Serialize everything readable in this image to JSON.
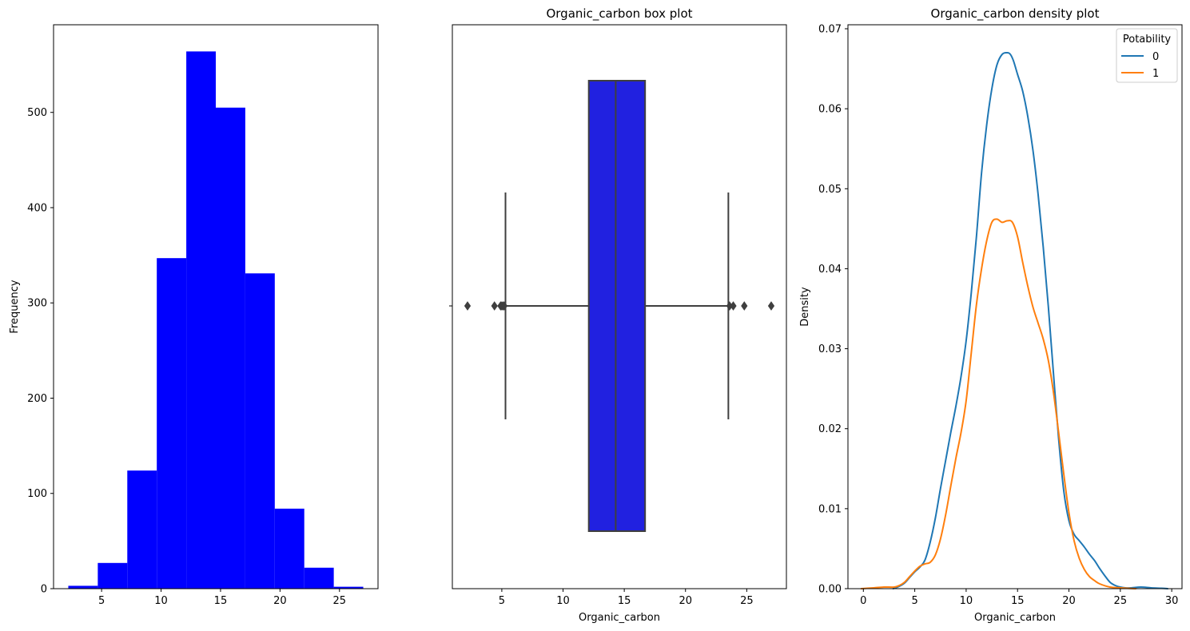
{
  "chart_data": [
    {
      "type": "bar",
      "subtype": "histogram",
      "title": "",
      "xlabel": "",
      "ylabel": "Frequency",
      "color": "#0000ff",
      "bin_edges": [
        2.2,
        4.68,
        7.16,
        9.64,
        12.12,
        14.6,
        17.08,
        19.56,
        22.04,
        24.52,
        27.0
      ],
      "values": [
        3,
        27,
        124,
        347,
        564,
        505,
        331,
        84,
        22,
        2
      ],
      "xlim": [
        0.96,
        28.24
      ],
      "ylim": [
        0,
        592
      ],
      "xticks": [
        5,
        10,
        15,
        20,
        25
      ],
      "xtick_labels": [
        "5",
        "10",
        "15",
        "20",
        "25"
      ],
      "yticks": [
        0,
        100,
        200,
        300,
        400,
        500
      ],
      "ytick_labels": [
        "0",
        "100",
        "200",
        "300",
        "400",
        "500"
      ]
    },
    {
      "type": "box",
      "title": "Organic_carbon box plot",
      "xlabel": "Organic_carbon",
      "ylabel": "",
      "color": "#2121e0",
      "edge_color": "#3f3f3f",
      "q1": 12.1,
      "median": 14.3,
      "q3": 16.7,
      "whisker_low": 5.3,
      "whisker_high": 23.5,
      "outliers": [
        2.2,
        4.4,
        4.9,
        5.0,
        5.1,
        5.2,
        23.6,
        23.9,
        24.8,
        27.0
      ],
      "xlim": [
        0.96,
        28.24
      ],
      "xticks": [
        5,
        10,
        15,
        20,
        25
      ],
      "xtick_labels": [
        "5",
        "10",
        "15",
        "20",
        "25"
      ]
    },
    {
      "type": "line",
      "subtype": "kde",
      "title": "Organic_carbon density plot",
      "xlabel": "Organic_carbon",
      "ylabel": "Density",
      "xlim": [
        -1.5,
        31.0
      ],
      "ylim": [
        0,
        0.0705
      ],
      "xticks": [
        0,
        5,
        10,
        15,
        20,
        25,
        30
      ],
      "xtick_labels": [
        "0",
        "5",
        "10",
        "15",
        "20",
        "25",
        "30"
      ],
      "yticks": [
        0,
        0.01,
        0.02,
        0.03,
        0.04,
        0.05,
        0.06,
        0.07
      ],
      "ytick_labels": [
        "0.00",
        "0.01",
        "0.02",
        "0.03",
        "0.04",
        "0.05",
        "0.06",
        "0.07"
      ],
      "legend": {
        "title": "Potability",
        "position": "top-right"
      },
      "series": [
        {
          "name": "0",
          "color": "#1f77b4",
          "x": [
            2.9,
            3.5,
            4.0,
            4.5,
            5.0,
            5.5,
            6.0,
            6.5,
            7.0,
            7.5,
            8.0,
            8.5,
            9.0,
            9.5,
            10.0,
            10.5,
            11.0,
            11.5,
            12.0,
            12.5,
            13.0,
            13.5,
            14.0,
            14.3,
            14.6,
            15.0,
            15.5,
            16.0,
            16.5,
            17.0,
            17.5,
            18.0,
            18.5,
            19.0,
            19.5,
            20.0,
            20.5,
            21.0,
            21.5,
            22.0,
            22.5,
            23.0,
            23.5,
            24.0,
            24.5,
            25.0,
            25.5,
            26.0,
            27.0,
            28.0,
            29.0,
            29.6
          ],
          "y": [
            0.0,
            0.0003,
            0.0007,
            0.0014,
            0.0021,
            0.0027,
            0.0036,
            0.0058,
            0.0088,
            0.0125,
            0.016,
            0.0195,
            0.0228,
            0.0265,
            0.031,
            0.037,
            0.044,
            0.052,
            0.058,
            0.0625,
            0.0655,
            0.0668,
            0.067,
            0.0668,
            0.066,
            0.0643,
            0.0622,
            0.059,
            0.0548,
            0.0493,
            0.0427,
            0.0352,
            0.0268,
            0.0187,
            0.0122,
            0.0085,
            0.0068,
            0.006,
            0.0052,
            0.0043,
            0.0035,
            0.0025,
            0.0016,
            0.0008,
            0.0004,
            0.0002,
            0.0001,
            0.0001,
            0.0002,
            0.0001,
            5e-05,
            0.0
          ]
        },
        {
          "name": "1",
          "color": "#ff7f0e",
          "x": [
            -0.2,
            1.0,
            2.0,
            3.0,
            3.5,
            4.0,
            4.5,
            5.0,
            5.5,
            6.0,
            6.5,
            7.0,
            7.5,
            8.0,
            8.5,
            9.0,
            9.5,
            10.0,
            10.5,
            11.0,
            11.5,
            12.0,
            12.5,
            13.0,
            13.5,
            14.0,
            14.5,
            15.0,
            15.5,
            16.0,
            16.5,
            17.0,
            17.5,
            18.0,
            18.5,
            19.0,
            19.5,
            20.0,
            20.5,
            21.0,
            21.5,
            22.0,
            22.5,
            23.0,
            24.0,
            25.0,
            26.0,
            26.5
          ],
          "y": [
            0.0,
            0.0001,
            0.0002,
            0.0002,
            0.0004,
            0.0008,
            0.0015,
            0.0022,
            0.0028,
            0.0031,
            0.0033,
            0.0042,
            0.0062,
            0.0092,
            0.0128,
            0.0163,
            0.0195,
            0.0235,
            0.0295,
            0.0355,
            0.04,
            0.0435,
            0.0458,
            0.0462,
            0.0458,
            0.046,
            0.0458,
            0.044,
            0.0408,
            0.0378,
            0.0352,
            0.0332,
            0.0312,
            0.0285,
            0.0245,
            0.0195,
            0.0143,
            0.0095,
            0.006,
            0.0038,
            0.0024,
            0.0015,
            0.001,
            0.0006,
            0.0002,
            0.0001,
            2e-05,
            0.0
          ]
        }
      ]
    }
  ]
}
